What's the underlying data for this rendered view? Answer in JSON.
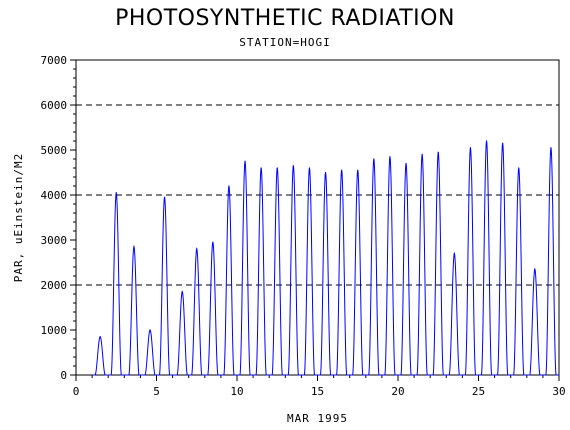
{
  "chart_data": {
    "type": "line",
    "title": "PHOTOSYNTHETIC RADIATION",
    "subtitle": "STATION=HOGI",
    "xlabel": "MAR 1995",
    "ylabel": "PAR, uEinstein/M2",
    "xlim": [
      0,
      30
    ],
    "ylim": [
      0,
      7000
    ],
    "x_ticks": [
      0,
      5,
      10,
      15,
      20,
      25,
      30
    ],
    "y_ticks": [
      0,
      1000,
      2000,
      3000,
      4000,
      5000,
      6000,
      7000
    ],
    "reference_lines": [
      2000,
      4000,
      6000
    ],
    "grid": false,
    "series": [
      {
        "color": "#0000ff",
        "daily_peaks": [
          {
            "day": 1.5,
            "peak": 850
          },
          {
            "day": 2.5,
            "peak": 4050
          },
          {
            "day": 3.6,
            "peak": 2850
          },
          {
            "day": 4.6,
            "peak": 1000
          },
          {
            "day": 5.5,
            "peak": 3950
          },
          {
            "day": 6.6,
            "peak": 1850
          },
          {
            "day": 7.5,
            "peak": 2800
          },
          {
            "day": 8.5,
            "peak": 2950
          },
          {
            "day": 9.5,
            "peak": 4200
          },
          {
            "day": 10.5,
            "peak": 4750
          },
          {
            "day": 11.5,
            "peak": 4600
          },
          {
            "day": 12.5,
            "peak": 4600
          },
          {
            "day": 13.5,
            "peak": 4650
          },
          {
            "day": 14.5,
            "peak": 4600
          },
          {
            "day": 15.5,
            "peak": 4500
          },
          {
            "day": 16.5,
            "peak": 4550
          },
          {
            "day": 17.5,
            "peak": 4550
          },
          {
            "day": 18.5,
            "peak": 4800
          },
          {
            "day": 19.5,
            "peak": 4850
          },
          {
            "day": 20.5,
            "peak": 4700
          },
          {
            "day": 21.5,
            "peak": 4900
          },
          {
            "day": 22.5,
            "peak": 4950
          },
          {
            "day": 23.5,
            "peak": 2700
          },
          {
            "day": 24.5,
            "peak": 5050
          },
          {
            "day": 25.5,
            "peak": 5200
          },
          {
            "day": 26.5,
            "peak": 5150
          },
          {
            "day": 27.5,
            "peak": 4600
          },
          {
            "day": 28.5,
            "peak": 2350
          },
          {
            "day": 29.5,
            "peak": 5050
          }
        ],
        "data_range_x": [
          1,
          30
        ]
      }
    ]
  }
}
